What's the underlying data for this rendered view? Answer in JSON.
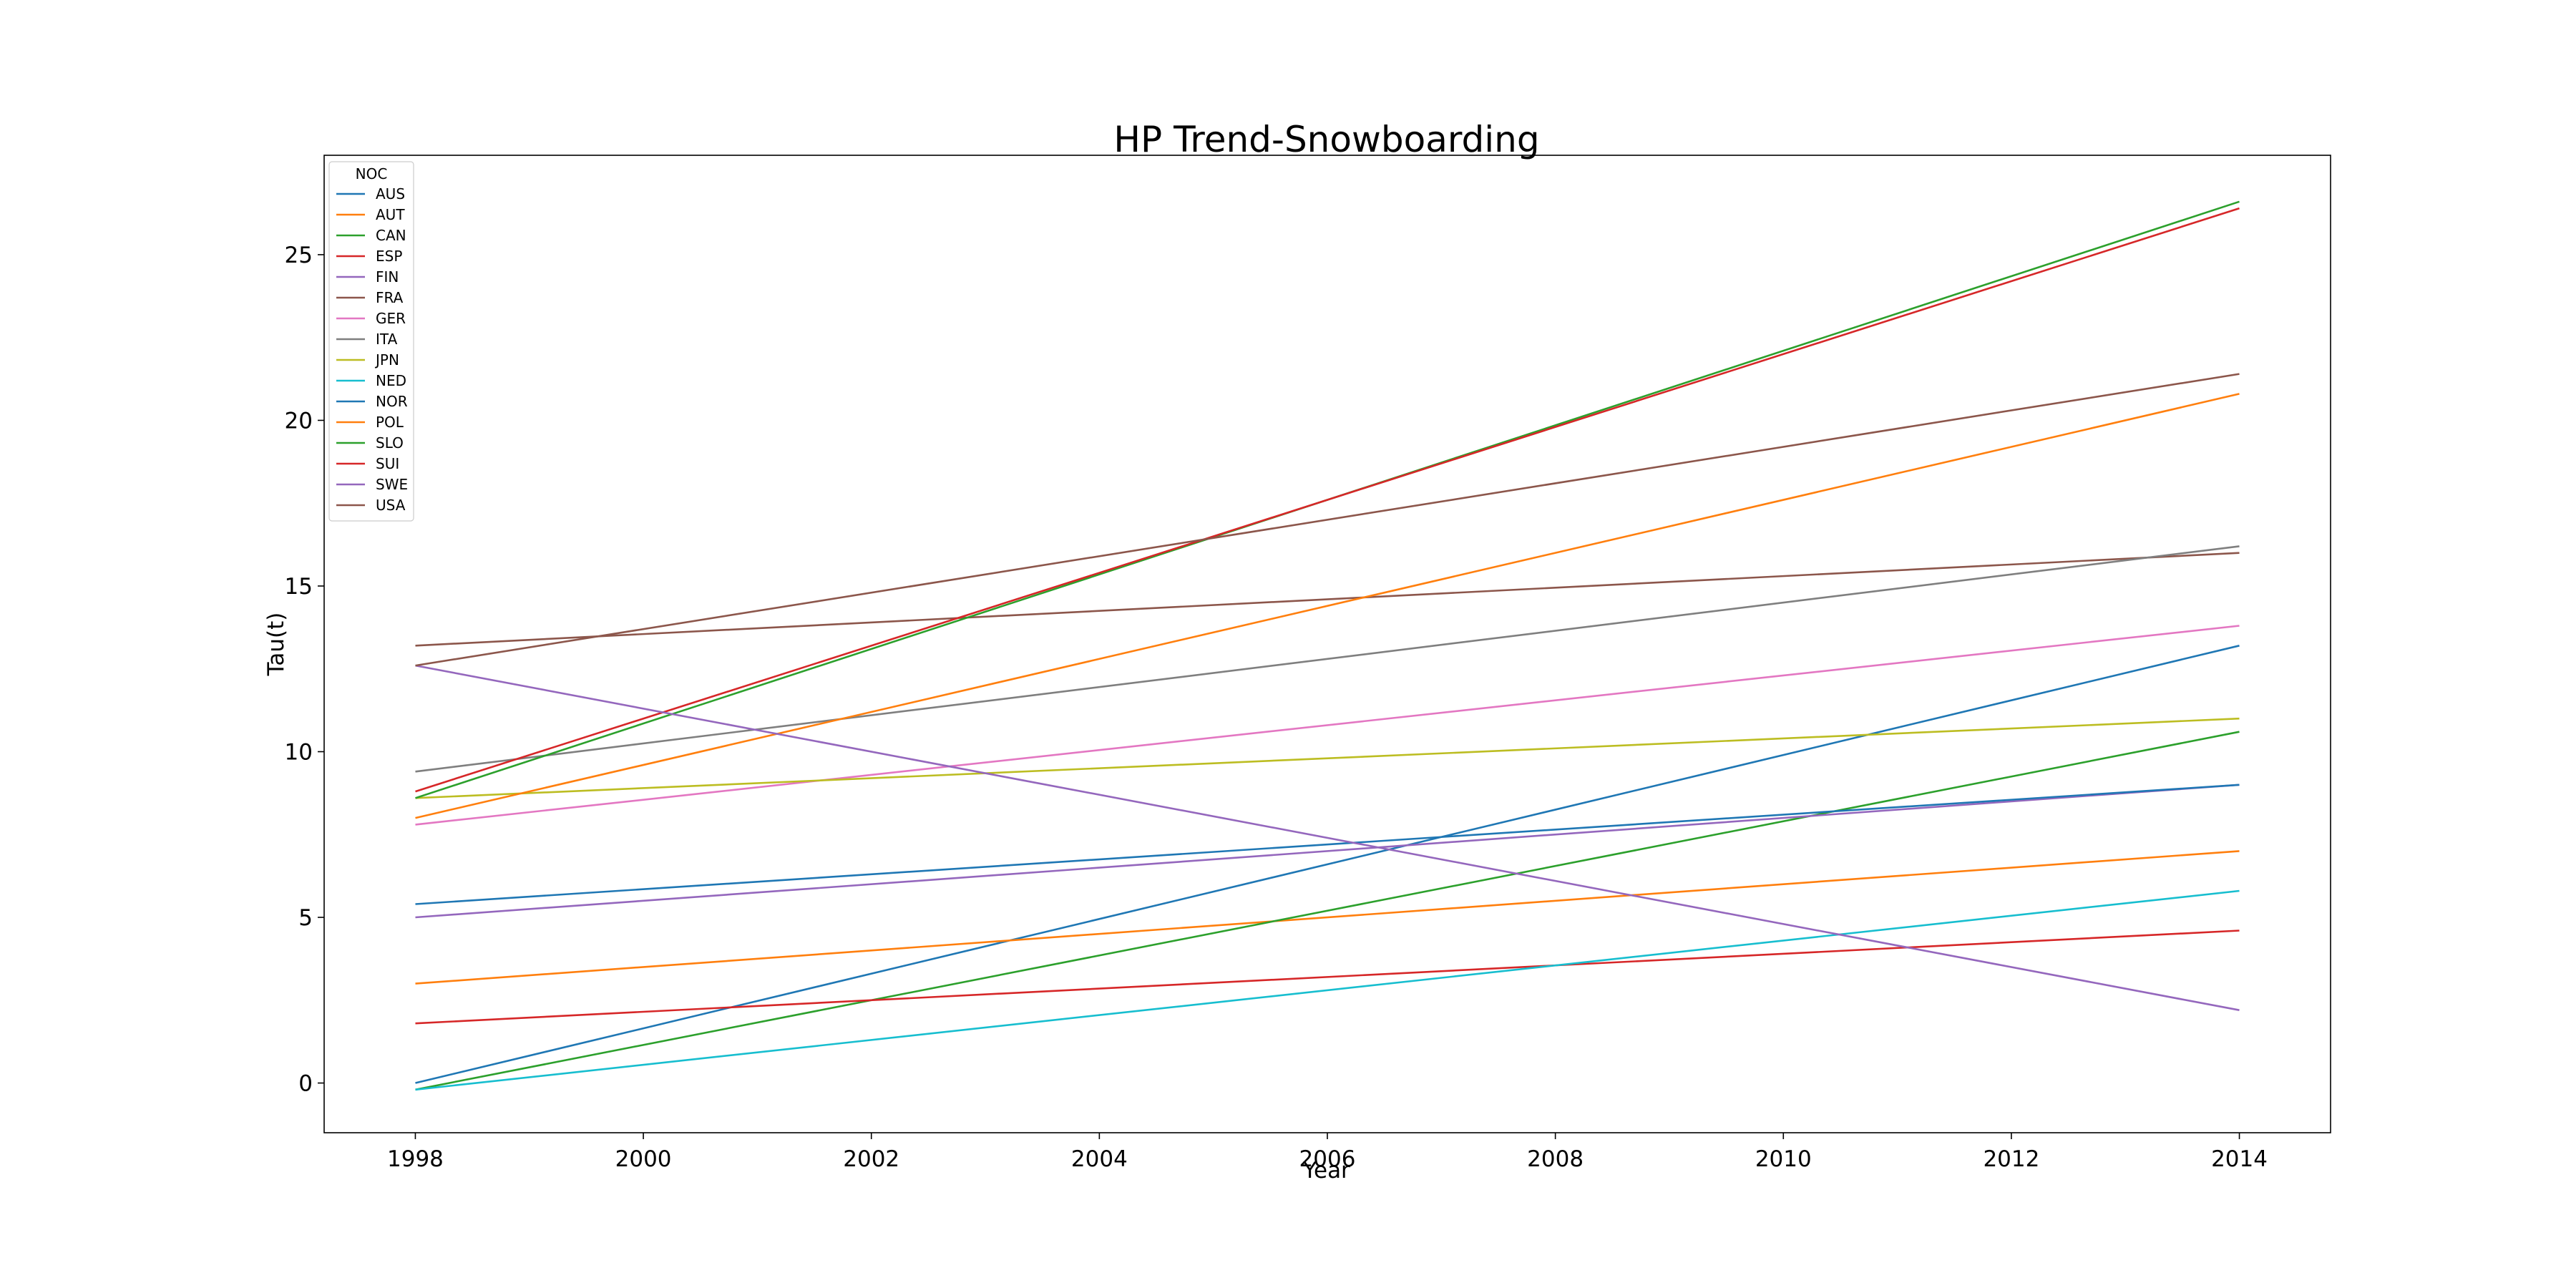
{
  "chart_data": {
    "type": "line",
    "title": "HP Trend-Snowboarding",
    "xlabel": "Year",
    "ylabel": "Tau(t)",
    "x": [
      1998,
      2014
    ],
    "xlim": [
      1997.2,
      2014.8
    ],
    "ylim": [
      -1.5,
      28.0
    ],
    "xticks": [
      1998,
      2000,
      2002,
      2004,
      2006,
      2008,
      2010,
      2012,
      2014
    ],
    "yticks": [
      0,
      5,
      10,
      15,
      20,
      25
    ],
    "grid": false,
    "legend": {
      "title": "NOC",
      "placement": "top-left"
    },
    "series": [
      {
        "name": "AUS",
        "color": "#1f77b4",
        "values": [
          0.0,
          13.2
        ]
      },
      {
        "name": "AUT",
        "color": "#ff7f0e",
        "values": [
          3.0,
          7.0
        ]
      },
      {
        "name": "CAN",
        "color": "#2ca02c",
        "values": [
          -0.2,
          10.6
        ]
      },
      {
        "name": "ESP",
        "color": "#d62728",
        "values": [
          1.8,
          4.6
        ]
      },
      {
        "name": "FIN",
        "color": "#9467bd",
        "values": [
          5.0,
          9.0
        ]
      },
      {
        "name": "FRA",
        "color": "#8c564b",
        "values": [
          13.2,
          16.0
        ]
      },
      {
        "name": "GER",
        "color": "#e377c2",
        "values": [
          7.8,
          13.8
        ]
      },
      {
        "name": "ITA",
        "color": "#7f7f7f",
        "values": [
          9.4,
          16.2
        ]
      },
      {
        "name": "JPN",
        "color": "#bcbd22",
        "values": [
          8.6,
          11.0
        ]
      },
      {
        "name": "NED",
        "color": "#17becf",
        "values": [
          -0.2,
          5.8
        ]
      },
      {
        "name": "NOR",
        "color": "#1f77b4",
        "values": [
          5.4,
          9.0
        ]
      },
      {
        "name": "POL",
        "color": "#ff7f0e",
        "values": [
          8.0,
          20.8
        ]
      },
      {
        "name": "SLO",
        "color": "#2ca02c",
        "values": [
          8.6,
          26.6
        ]
      },
      {
        "name": "SUI",
        "color": "#d62728",
        "values": [
          8.8,
          26.4
        ]
      },
      {
        "name": "SWE",
        "color": "#9467bd",
        "values": [
          12.6,
          2.2
        ]
      },
      {
        "name": "USA",
        "color": "#8c564b",
        "values": [
          12.6,
          21.4
        ]
      }
    ]
  }
}
